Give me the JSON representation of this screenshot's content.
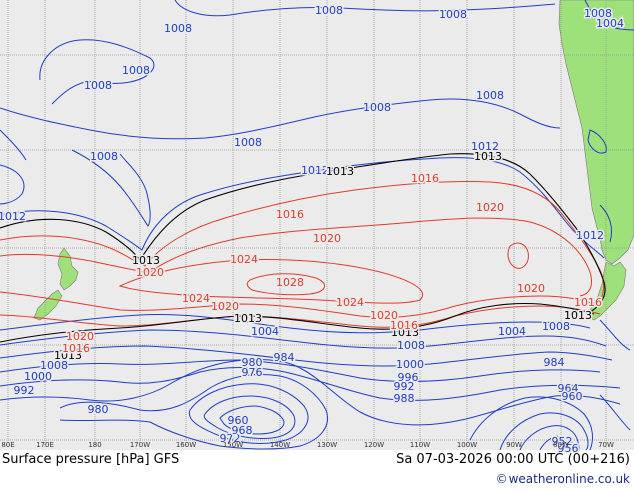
{
  "map": {
    "title": "Surface pressure [hPa] GFS",
    "valid_time": "Sa 07-03-2026 00:00 UTC (00+216)",
    "credit": "weatheronline.co.uk",
    "longitude_ticks": [
      "80E",
      "170E",
      "180",
      "170W",
      "160W",
      "150W",
      "140W",
      "130W",
      "120W",
      "110W",
      "100W",
      "90W",
      "80W",
      "70W"
    ],
    "colors": {
      "ocean": "#ebebeb",
      "land": "#9ee07a",
      "low_isobar": "#1e3ec8",
      "high_isobar": "#e23b2b",
      "standard_isobar": "#000000",
      "grid": "#9a9a9a"
    }
  },
  "isobar_labels": [
    {
      "id": "b1008a",
      "text": "1008",
      "kind": "low"
    },
    {
      "id": "b1008b",
      "text": "1008",
      "kind": "low"
    },
    {
      "id": "b1008c",
      "text": "1008",
      "kind": "low"
    },
    {
      "id": "b1008d",
      "text": "1008",
      "kind": "low"
    },
    {
      "id": "b1008e",
      "text": "1008",
      "kind": "low"
    },
    {
      "id": "b1008f",
      "text": "1008",
      "kind": "low"
    },
    {
      "id": "b1008g",
      "text": "1008",
      "kind": "low"
    },
    {
      "id": "b1008h",
      "text": "1008",
      "kind": "low"
    },
    {
      "id": "b1008i",
      "text": "1008",
      "kind": "low"
    },
    {
      "id": "b1008j",
      "text": "1008",
      "kind": "low"
    },
    {
      "id": "b1004a",
      "text": "1004",
      "kind": "low"
    },
    {
      "id": "b1012a",
      "text": "1012",
      "kind": "low"
    },
    {
      "id": "b1012b",
      "text": "1012",
      "kind": "low"
    },
    {
      "id": "b1012c",
      "text": "1012",
      "kind": "low"
    },
    {
      "id": "b1012d",
      "text": "1012",
      "kind": "low"
    },
    {
      "id": "k1013a",
      "text": "1013",
      "kind": "standard"
    },
    {
      "id": "k1013b",
      "text": "1013",
      "kind": "standard"
    },
    {
      "id": "k1013c",
      "text": "1013",
      "kind": "standard"
    },
    {
      "id": "k1013d",
      "text": "1013",
      "kind": "standard"
    },
    {
      "id": "k1013e",
      "text": "1013",
      "kind": "standard"
    },
    {
      "id": "k1013f",
      "text": "1013",
      "kind": "standard"
    },
    {
      "id": "k1013g",
      "text": "1013",
      "kind": "standard"
    },
    {
      "id": "r1016a",
      "text": "1016",
      "kind": "high"
    },
    {
      "id": "r1016b",
      "text": "1016",
      "kind": "high"
    },
    {
      "id": "r1016c",
      "text": "1016",
      "kind": "high"
    },
    {
      "id": "r1016d",
      "text": "1016",
      "kind": "high"
    },
    {
      "id": "r1016e",
      "text": "1016",
      "kind": "high"
    },
    {
      "id": "r1020a",
      "text": "1020",
      "kind": "high"
    },
    {
      "id": "r1020b",
      "text": "1020",
      "kind": "high"
    },
    {
      "id": "r1020c",
      "text": "1020",
      "kind": "high"
    },
    {
      "id": "r1020d",
      "text": "1020",
      "kind": "high"
    },
    {
      "id": "r1020e",
      "text": "1020",
      "kind": "high"
    },
    {
      "id": "r1020f",
      "text": "1020",
      "kind": "high"
    },
    {
      "id": "r1020g",
      "text": "1020",
      "kind": "high"
    },
    {
      "id": "r1024a",
      "text": "1024",
      "kind": "high"
    },
    {
      "id": "r1024b",
      "text": "1024",
      "kind": "high"
    },
    {
      "id": "r1024c",
      "text": "1024",
      "kind": "high"
    },
    {
      "id": "r1028a",
      "text": "1028",
      "kind": "high"
    },
    {
      "id": "b1004b",
      "text": "1004",
      "kind": "low"
    },
    {
      "id": "b1004c",
      "text": "1004",
      "kind": "low"
    },
    {
      "id": "b1008k",
      "text": "1008",
      "kind": "low"
    },
    {
      "id": "b1008l",
      "text": "1008",
      "kind": "low"
    },
    {
      "id": "b1008m",
      "text": "1008",
      "kind": "low"
    },
    {
      "id": "b1000a",
      "text": "1000",
      "kind": "low"
    },
    {
      "id": "b1000b",
      "text": "1000",
      "kind": "low"
    },
    {
      "id": "b996a",
      "text": "996",
      "kind": "low"
    },
    {
      "id": "b992a",
      "text": "992",
      "kind": "low"
    },
    {
      "id": "b992b",
      "text": "992",
      "kind": "low"
    },
    {
      "id": "b988a",
      "text": "988",
      "kind": "low"
    },
    {
      "id": "b984a",
      "text": "984",
      "kind": "low"
    },
    {
      "id": "b984b",
      "text": "984",
      "kind": "low"
    },
    {
      "id": "b980a",
      "text": "980",
      "kind": "low"
    },
    {
      "id": "b980b",
      "text": "980",
      "kind": "low"
    },
    {
      "id": "b976a",
      "text": "976",
      "kind": "low"
    },
    {
      "id": "b972a",
      "text": "972",
      "kind": "low"
    },
    {
      "id": "b968a",
      "text": "968",
      "kind": "low"
    },
    {
      "id": "b964a",
      "text": "964",
      "kind": "low"
    },
    {
      "id": "b960a",
      "text": "960",
      "kind": "low"
    },
    {
      "id": "b960b",
      "text": "960",
      "kind": "low"
    },
    {
      "id": "b956a",
      "text": "956",
      "kind": "low"
    },
    {
      "id": "b952a",
      "text": "952",
      "kind": "low"
    }
  ]
}
